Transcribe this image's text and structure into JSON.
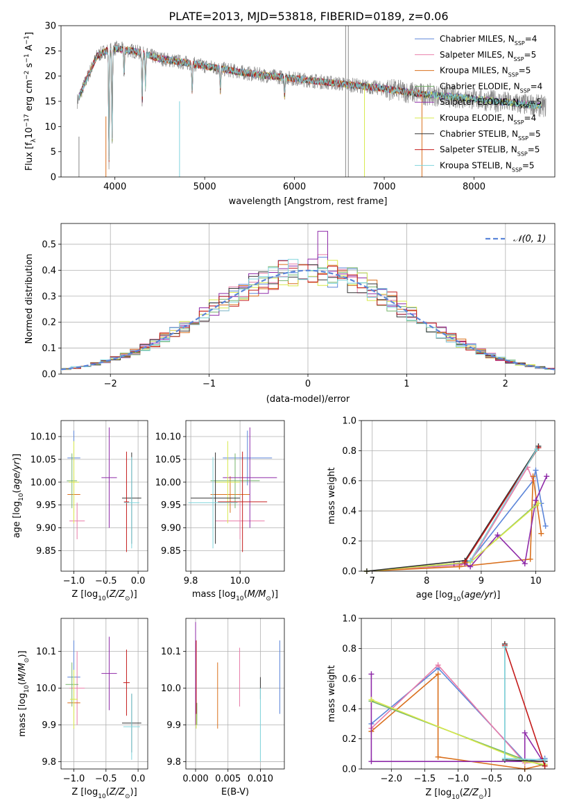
{
  "title": "PLATE=2013, MJD=53818, FIBERID=0189, z=0.06",
  "colors": {
    "Chabrier MILES": "#5b85d9",
    "Salpeter MILES": "#e87ca8",
    "Kroupa MILES": "#d96f1c",
    "Chabrier ELODIE": "#74b36a",
    "Salpeter ELODIE": "#8e2aa8",
    "Kroupa ELODIE": "#d7e84a",
    "Chabrier STELIB": "#333333",
    "Salpeter STELIB": "#c41b1b",
    "Kroupa STELIB": "#7fd4dc",
    "data": "#888888"
  },
  "chart_data": [
    {
      "id": "spectrum",
      "type": "line",
      "title": "PLATE=2013, MJD=53818, FIBERID=0189, z=0.06",
      "xlabel": "wavelength [Angstrom, rest frame]",
      "ylabel": "Flux [f_λ 10^-17 erg cm^-2 s^-1 A^-1]",
      "xlim": [
        3400,
        8900
      ],
      "ylim": [
        0,
        30
      ],
      "xticks": [
        4000,
        5000,
        6000,
        7000,
        8000
      ],
      "yticks": [
        0,
        5,
        10,
        15,
        20,
        25,
        30
      ],
      "grid": false,
      "legend_position": "top-right",
      "series": [
        {
          "name": "Chabrier MILES, N_SSP=4",
          "model": "Chabrier MILES"
        },
        {
          "name": "Salpeter MILES, N_SSP=5",
          "model": "Salpeter MILES"
        },
        {
          "name": "Kroupa MILES, N_SSP=5",
          "model": "Kroupa MILES"
        },
        {
          "name": "Chabrier ELODIE, N_SSP=4",
          "model": "Chabrier ELODIE"
        },
        {
          "name": "Salpeter ELODIE, N_SSP=5",
          "model": "Salpeter ELODIE"
        },
        {
          "name": "Kroupa ELODIE, N_SSP=4",
          "model": "Kroupa ELODIE"
        },
        {
          "name": "Chabrier STELIB, N_SSP=5",
          "model": "Chabrier STELIB"
        },
        {
          "name": "Salpeter STELIB, N_SSP=5",
          "model": "Salpeter STELIB"
        },
        {
          "name": "Kroupa STELIB, N_SSP=5",
          "model": "Kroupa STELIB"
        }
      ],
      "continuum_points": [
        [
          3580,
          15
        ],
        [
          3700,
          20
        ],
        [
          3800,
          24
        ],
        [
          3900,
          25
        ],
        [
          4000,
          25.5
        ],
        [
          4200,
          25
        ],
        [
          4500,
          23.5
        ],
        [
          5000,
          22
        ],
        [
          5500,
          20.5
        ],
        [
          6000,
          19.5
        ],
        [
          6500,
          18.5
        ],
        [
          7000,
          17.5
        ],
        [
          7400,
          16.5
        ],
        [
          8000,
          15.5
        ],
        [
          8500,
          14.5
        ],
        [
          8800,
          14
        ]
      ],
      "absorption_lines": [
        [
          3934,
          3
        ],
        [
          3969,
          7
        ],
        [
          4102,
          20
        ],
        [
          4304,
          15
        ],
        [
          4340,
          18
        ],
        [
          4861,
          17
        ],
        [
          5175,
          17
        ],
        [
          5890,
          16
        ]
      ]
    },
    {
      "id": "residuals",
      "type": "histogram",
      "xlabel": "(data-model)/error",
      "ylabel": "Normed distribution",
      "xlim": [
        -2.5,
        2.5
      ],
      "ylim": [
        0,
        0.58
      ],
      "xticks": [
        -2,
        -1,
        0,
        1,
        2
      ],
      "yticks": [
        0.0,
        0.1,
        0.2,
        0.3,
        0.4,
        0.5
      ],
      "grid": true,
      "legend_position": "top-right",
      "legend": "𝒩(0, 1)",
      "bin_width": 0.1,
      "peak_values": {
        "Salpeter ELODIE": 0.55,
        "Salpeter MILES": 0.46,
        "Chabrier MILES": 0.45
      }
    },
    {
      "id": "age_vs_Z",
      "type": "errorbar",
      "xlabel": "Z [log10(Z/Z⊙)]",
      "ylabel": "age  [log10(age/yr)]",
      "xlim": [
        -1.2,
        0.15
      ],
      "ylim": [
        9.805,
        10.135
      ],
      "xticks": [
        -1.0,
        -0.5,
        0.0
      ],
      "yticks": [
        9.85,
        9.9,
        9.95,
        10.0,
        10.05,
        10.1
      ],
      "grid": true,
      "points": [
        {
          "model": "Chabrier MILES",
          "x": -1.0,
          "xerr": 0.1,
          "y": 10.053,
          "yerr": 0.06
        },
        {
          "model": "Salpeter MILES",
          "x": -0.95,
          "xerr": 0.12,
          "y": 9.915,
          "yerr": 0.04
        },
        {
          "model": "Kroupa MILES",
          "x": -1.0,
          "xerr": 0.1,
          "y": 9.973,
          "yerr": 0.04
        },
        {
          "model": "Chabrier ELODIE",
          "x": -1.03,
          "xerr": 0.08,
          "y": 10.003,
          "yerr": 0.06
        },
        {
          "model": "Salpeter ELODIE",
          "x": -0.45,
          "xerr": 0.12,
          "y": 10.01,
          "yerr": 0.11
        },
        {
          "model": "Kroupa ELODIE",
          "x": -1.0,
          "xerr": 0.08,
          "y": 10.0,
          "yerr": 0.09
        },
        {
          "model": "Chabrier STELIB",
          "x": -0.1,
          "xerr": 0.15,
          "y": 9.965,
          "yerr": 0.1
        },
        {
          "model": "Salpeter STELIB",
          "x": -0.18,
          "xerr": 0.04,
          "y": 9.957,
          "yerr": 0.11
        },
        {
          "model": "Kroupa STELIB",
          "x": -0.1,
          "xerr": 0.12,
          "y": 9.955,
          "yerr": 0.1
        }
      ]
    },
    {
      "id": "age_vs_mass",
      "type": "errorbar",
      "xlabel": "mass [log10(M/M⊙)]",
      "ylabel": "",
      "xlim": [
        9.78,
        10.18
      ],
      "ylim": [
        9.805,
        10.135
      ],
      "xticks": [
        9.8,
        10.0
      ],
      "yticks": [
        9.85,
        9.9,
        9.95,
        10.0,
        10.05,
        10.1
      ],
      "grid": true,
      "points": [
        {
          "model": "Chabrier MILES",
          "x": 10.03,
          "xerr": 0.1,
          "y": 10.053,
          "yerr": 0.06
        },
        {
          "model": "Salpeter MILES",
          "x": 10.0,
          "xerr": 0.1,
          "y": 9.915,
          "yerr": 0.04
        },
        {
          "model": "Kroupa MILES",
          "x": 9.96,
          "xerr": 0.08,
          "y": 9.973,
          "yerr": 0.04
        },
        {
          "model": "Chabrier ELODIE",
          "x": 9.98,
          "xerr": 0.1,
          "y": 10.003,
          "yerr": 0.06
        },
        {
          "model": "Salpeter ELODIE",
          "x": 10.04,
          "xerr": 0.11,
          "y": 10.01,
          "yerr": 0.11
        },
        {
          "model": "Kroupa ELODIE",
          "x": 9.95,
          "xerr": 0.05,
          "y": 10.0,
          "yerr": 0.09
        },
        {
          "model": "Chabrier STELIB",
          "x": 9.9,
          "xerr": 0.1,
          "y": 9.965,
          "yerr": 0.1
        },
        {
          "model": "Salpeter STELIB",
          "x": 10.01,
          "xerr": 0.1,
          "y": 9.957,
          "yerr": 0.11
        },
        {
          "model": "Kroupa STELIB",
          "x": 9.89,
          "xerr": 0.1,
          "y": 9.955,
          "yerr": 0.1
        }
      ]
    },
    {
      "id": "mass_weight_vs_age",
      "type": "line",
      "xlabel": "age  [log10(age/yr)]",
      "ylabel": "mass weight",
      "xlim": [
        6.8,
        10.35
      ],
      "ylim": [
        0,
        1
      ],
      "xticks": [
        7,
        8,
        9,
        10
      ],
      "yticks": [
        0.0,
        0.2,
        0.4,
        0.6,
        0.8,
        1.0
      ],
      "grid": true,
      "series": [
        {
          "model": "Chabrier MILES",
          "x": [
            6.9,
            8.6,
            8.8,
            9.95,
            10.0,
            10.1,
            10.18
          ],
          "y": [
            0.0,
            0.05,
            0.07,
            0.6,
            0.67,
            0.45,
            0.3
          ]
        },
        {
          "model": "Salpeter MILES",
          "x": [
            6.9,
            8.6,
            8.8,
            9.85,
            9.95
          ],
          "y": [
            0.0,
            0.04,
            0.06,
            0.69,
            0.6
          ]
        },
        {
          "model": "Kroupa MILES",
          "x": [
            6.9,
            8.6,
            9.9,
            9.95,
            10.1
          ],
          "y": [
            0.0,
            0.03,
            0.08,
            0.63,
            0.25
          ]
        },
        {
          "model": "Chabrier ELODIE",
          "x": [
            6.9,
            8.8,
            10.0
          ],
          "y": [
            0.0,
            0.06,
            0.44
          ]
        },
        {
          "model": "Salpeter ELODIE",
          "x": [
            8.5,
            8.7,
            8.8,
            9.3,
            9.8,
            10.0,
            10.2
          ],
          "y": [
            0.05,
            0.05,
            0.03,
            0.24,
            0.05,
            0.47,
            0.63
          ]
        },
        {
          "model": "Kroupa ELODIE",
          "x": [
            6.9,
            8.8,
            10.05
          ],
          "y": [
            0.0,
            0.06,
            0.45
          ]
        },
        {
          "model": "Chabrier STELIB",
          "x": [
            6.9,
            8.7,
            10.05
          ],
          "y": [
            0.0,
            0.07,
            0.83
          ]
        },
        {
          "model": "Salpeter STELIB",
          "x": [
            8.7,
            10.05
          ],
          "y": [
            0.06,
            0.82
          ]
        },
        {
          "model": "Kroupa STELIB",
          "x": [
            8.8,
            10.02
          ],
          "y": [
            0.07,
            0.81
          ]
        }
      ]
    },
    {
      "id": "mass_vs_Z",
      "type": "errorbar",
      "xlabel": "Z [log10(Z/Z⊙)]",
      "ylabel": "mass [log10(M/M⊙)]",
      "xlim": [
        -1.2,
        0.15
      ],
      "ylim": [
        9.78,
        10.19
      ],
      "xticks": [
        -1.0,
        -0.5,
        0.0
      ],
      "yticks": [
        9.8,
        9.9,
        10.0,
        10.1
      ],
      "grid": true,
      "points": [
        {
          "model": "Chabrier MILES",
          "x": -1.0,
          "xerr": 0.1,
          "y": 10.03,
          "yerr": 0.1
        },
        {
          "model": "Salpeter MILES",
          "x": -0.95,
          "xerr": 0.12,
          "y": 10.0,
          "yerr": 0.1
        },
        {
          "model": "Kroupa MILES",
          "x": -1.0,
          "xerr": 0.1,
          "y": 9.96,
          "yerr": 0.07
        },
        {
          "model": "Chabrier ELODIE",
          "x": -1.03,
          "xerr": 0.1,
          "y": 10.01,
          "yerr": 0.06
        },
        {
          "model": "Salpeter ELODIE",
          "x": -0.45,
          "xerr": 0.12,
          "y": 10.04,
          "yerr": 0.1
        },
        {
          "model": "Kroupa ELODIE",
          "x": -1.0,
          "xerr": 0.06,
          "y": 9.97,
          "yerr": 0.08
        },
        {
          "model": "Chabrier STELIB",
          "x": -0.1,
          "xerr": 0.15,
          "y": 9.905,
          "yerr": 0.08
        },
        {
          "model": "Salpeter STELIB",
          "x": -0.18,
          "xerr": 0.05,
          "y": 10.015,
          "yerr": 0.09
        },
        {
          "model": "Kroupa STELIB",
          "x": -0.1,
          "xerr": 0.13,
          "y": 9.895,
          "yerr": 0.09
        }
      ]
    },
    {
      "id": "mass_vs_ebv",
      "type": "errorbar",
      "xlabel": "E(B-V)",
      "ylabel": "",
      "xlim": [
        -0.0015,
        0.0137
      ],
      "ylim": [
        9.78,
        10.19
      ],
      "xticks": [
        0.0,
        0.005,
        0.01
      ],
      "yticks": [
        9.8,
        9.9,
        10.0,
        10.1
      ],
      "grid": true,
      "points": [
        {
          "model": "Chabrier MILES",
          "x": 0.013,
          "xerr": 0,
          "y": 10.03,
          "yerr": 0.1
        },
        {
          "model": "Salpeter MILES",
          "x": 0.0068,
          "xerr": 0,
          "y": 10.03,
          "yerr": 0.08
        },
        {
          "model": "Kroupa MILES",
          "x": 0.0034,
          "xerr": 0,
          "y": 9.98,
          "yerr": 0.09
        },
        {
          "model": "Chabrier ELODIE",
          "x": 0.0002,
          "xerr": 0,
          "y": 9.93,
          "yerr": 0.03
        },
        {
          "model": "Salpeter ELODIE",
          "x": 0.0,
          "xerr": 0,
          "y": 10.04,
          "yerr": 0.14
        },
        {
          "model": "Kroupa ELODIE",
          "x": 0.0001,
          "xerr": 0,
          "y": 9.93,
          "yerr": 0.04
        },
        {
          "model": "Chabrier STELIB",
          "x": 0.01,
          "xerr": 0,
          "y": 10.0,
          "yerr": 0.03
        },
        {
          "model": "Salpeter STELIB",
          "x": 0.0001,
          "xerr": 0,
          "y": 10.03,
          "yerr": 0.1
        },
        {
          "model": "Kroupa STELIB",
          "x": 0.01,
          "xerr": 0,
          "y": 9.9,
          "yerr": 0.1
        }
      ]
    },
    {
      "id": "mass_weight_vs_Z",
      "type": "line",
      "xlabel": "Z [log10(Z/Z⊙)]",
      "ylabel": "mass weight",
      "xlim": [
        -2.45,
        0.45
      ],
      "ylim": [
        0,
        1
      ],
      "xticks": [
        -2.0,
        -1.5,
        -1.0,
        -0.5,
        0.0
      ],
      "yticks": [
        0.0,
        0.2,
        0.4,
        0.6,
        0.8,
        1.0
      ],
      "grid": true,
      "series": [
        {
          "model": "Chabrier MILES",
          "x": [
            -2.3,
            -1.3,
            0.0,
            0.3
          ],
          "y": [
            0.3,
            0.67,
            0.05,
            0.07
          ]
        },
        {
          "model": "Salpeter MILES",
          "x": [
            -2.3,
            -1.3,
            0.0,
            0.3
          ],
          "y": [
            0.27,
            0.69,
            0.04,
            0.05
          ]
        },
        {
          "model": "Kroupa MILES",
          "x": [
            -2.3,
            -1.3,
            -1.3,
            0.0,
            0.3
          ],
          "y": [
            0.25,
            0.63,
            0.08,
            0.0,
            0.03
          ]
        },
        {
          "model": "Chabrier ELODIE",
          "x": [
            -2.3,
            0.0,
            0.3
          ],
          "y": [
            0.45,
            0.06,
            0.02
          ]
        },
        {
          "model": "Salpeter ELODIE",
          "x": [
            -2.3,
            -2.3,
            0.0,
            0.0,
            0.3,
            0.3
          ],
          "y": [
            0.63,
            0.05,
            0.05,
            0.24,
            0.03,
            0.05
          ]
        },
        {
          "model": "Kroupa ELODIE",
          "x": [
            -2.3,
            0.0,
            0.3
          ],
          "y": [
            0.46,
            0.05,
            0.03
          ]
        },
        {
          "model": "Chabrier STELIB",
          "x": [
            -0.3,
            -0.3,
            0.3
          ],
          "y": [
            0.83,
            0.06,
            0.05
          ]
        },
        {
          "model": "Salpeter STELIB",
          "x": [
            -0.3,
            0.3
          ],
          "y": [
            0.82,
            0.02
          ]
        },
        {
          "model": "Kroupa STELIB",
          "x": [
            -0.3,
            -0.3,
            0.3
          ],
          "y": [
            0.81,
            0.07,
            0.06
          ]
        }
      ]
    }
  ]
}
